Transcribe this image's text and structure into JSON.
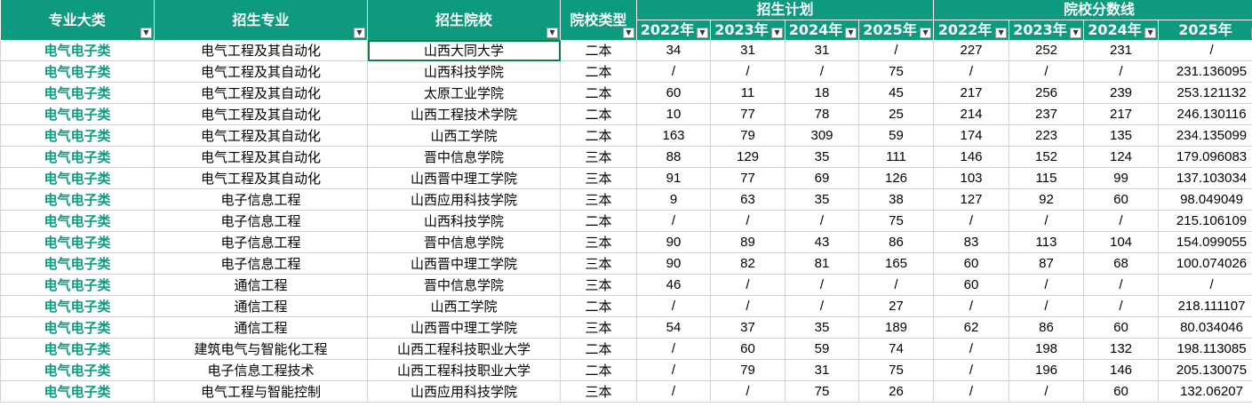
{
  "headers": {
    "category": "专业大类",
    "major": "招生专业",
    "school": "招生院校",
    "school_type": "院校类型",
    "plan_group": "招生计划",
    "score_group": "院校分数线",
    "filter_icon_category": "filter-active-icon",
    "dropdown_icon": "chevron-down-icon"
  },
  "years": {
    "plan": [
      "2022年",
      "2023年",
      "2024年",
      "2025年"
    ],
    "score": [
      "2022年",
      "2023年",
      "2024年",
      "2025年"
    ]
  },
  "colors": {
    "header_bg": "#0d9a7e",
    "header_text": "#ffffff",
    "category_text": "#0f9e82",
    "selection": "#107c41"
  },
  "selected_cell": "row1-school",
  "rows": [
    {
      "cat": "电气电子类",
      "major": "电气工程及其自动化",
      "school": "山西大同大学",
      "type": "二本",
      "p22": "34",
      "p23": "31",
      "p24": "31",
      "p25": "/",
      "s22": "227",
      "s23": "252",
      "s24": "231",
      "s25": "/"
    },
    {
      "cat": "电气电子类",
      "major": "电气工程及其自动化",
      "school": "山西科技学院",
      "type": "二本",
      "p22": "/",
      "p23": "/",
      "p24": "/",
      "p25": "75",
      "s22": "/",
      "s23": "/",
      "s24": "/",
      "s25": "231.136095"
    },
    {
      "cat": "电气电子类",
      "major": "电气工程及其自动化",
      "school": "太原工业学院",
      "type": "二本",
      "p22": "60",
      "p23": "11",
      "p24": "18",
      "p25": "45",
      "s22": "217",
      "s23": "256",
      "s24": "239",
      "s25": "253.121132"
    },
    {
      "cat": "电气电子类",
      "major": "电气工程及其自动化",
      "school": "山西工程技术学院",
      "type": "二本",
      "p22": "10",
      "p23": "77",
      "p24": "78",
      "p25": "25",
      "s22": "214",
      "s23": "237",
      "s24": "217",
      "s25": "246.130116"
    },
    {
      "cat": "电气电子类",
      "major": "电气工程及其自动化",
      "school": "山西工学院",
      "type": "二本",
      "p22": "163",
      "p23": "79",
      "p24": "309",
      "p25": "59",
      "s22": "174",
      "s23": "223",
      "s24": "135",
      "s25": "234.135099"
    },
    {
      "cat": "电气电子类",
      "major": "电气工程及其自动化",
      "school": "晋中信息学院",
      "type": "三本",
      "p22": "88",
      "p23": "129",
      "p24": "35",
      "p25": "111",
      "s22": "146",
      "s23": "152",
      "s24": "124",
      "s25": "179.096083"
    },
    {
      "cat": "电气电子类",
      "major": "电气工程及其自动化",
      "school": "山西晋中理工学院",
      "type": "三本",
      "p22": "91",
      "p23": "77",
      "p24": "69",
      "p25": "126",
      "s22": "103",
      "s23": "115",
      "s24": "99",
      "s25": "137.103034"
    },
    {
      "cat": "电气电子类",
      "major": "电子信息工程",
      "school": "山西应用科技学院",
      "type": "三本",
      "p22": "9",
      "p23": "63",
      "p24": "35",
      "p25": "38",
      "s22": "127",
      "s23": "92",
      "s24": "60",
      "s25": "98.049049"
    },
    {
      "cat": "电气电子类",
      "major": "电子信息工程",
      "school": "山西科技学院",
      "type": "二本",
      "p22": "/",
      "p23": "/",
      "p24": "/",
      "p25": "75",
      "s22": "/",
      "s23": "/",
      "s24": "/",
      "s25": "215.106109"
    },
    {
      "cat": "电气电子类",
      "major": "电子信息工程",
      "school": "晋中信息学院",
      "type": "三本",
      "p22": "90",
      "p23": "89",
      "p24": "43",
      "p25": "86",
      "s22": "83",
      "s23": "113",
      "s24": "104",
      "s25": "154.099055"
    },
    {
      "cat": "电气电子类",
      "major": "电子信息工程",
      "school": "山西晋中理工学院",
      "type": "三本",
      "p22": "90",
      "p23": "82",
      "p24": "81",
      "p25": "165",
      "s22": "60",
      "s23": "87",
      "s24": "68",
      "s25": "100.074026"
    },
    {
      "cat": "电气电子类",
      "major": "通信工程",
      "school": "晋中信息学院",
      "type": "三本",
      "p22": "46",
      "p23": "/",
      "p24": "/",
      "p25": "/",
      "s22": "60",
      "s23": "/",
      "s24": "/",
      "s25": "/"
    },
    {
      "cat": "电气电子类",
      "major": "通信工程",
      "school": "山西工学院",
      "type": "二本",
      "p22": "/",
      "p23": "/",
      "p24": "/",
      "p25": "27",
      "s22": "/",
      "s23": "/",
      "s24": "/",
      "s25": "218.111107"
    },
    {
      "cat": "电气电子类",
      "major": "通信工程",
      "school": "山西晋中理工学院",
      "type": "三本",
      "p22": "54",
      "p23": "37",
      "p24": "35",
      "p25": "189",
      "s22": "62",
      "s23": "86",
      "s24": "60",
      "s25": "80.034046"
    },
    {
      "cat": "电气电子类",
      "major": "建筑电气与智能化工程",
      "school": "山西工程科技职业大学",
      "type": "二本",
      "p22": "/",
      "p23": "60",
      "p24": "59",
      "p25": "74",
      "s22": "/",
      "s23": "198",
      "s24": "132",
      "s25": "198.113085"
    },
    {
      "cat": "电气电子类",
      "major": "电子信息工程技术",
      "school": "山西工程科技职业大学",
      "type": "二本",
      "p22": "/",
      "p23": "79",
      "p24": "31",
      "p25": "75",
      "s22": "/",
      "s23": "196",
      "s24": "146",
      "s25": "205.130075"
    },
    {
      "cat": "电气电子类",
      "major": "电气工程与智能控制",
      "school": "山西应用科技学院",
      "type": "三本",
      "p22": "/",
      "p23": "/",
      "p24": "75",
      "p25": "26",
      "s22": "/",
      "s23": "/",
      "s24": "60",
      "s25": "132.06207"
    }
  ]
}
